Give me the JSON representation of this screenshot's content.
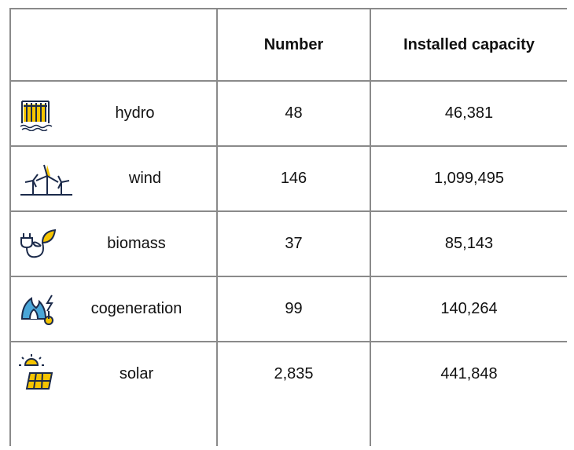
{
  "table": {
    "columns": [
      "Number",
      "Installed capacity"
    ],
    "rows": [
      {
        "label": "hydro",
        "number": "48",
        "capacity": "46,381"
      },
      {
        "label": "wind",
        "number": "146",
        "capacity": "1,099,495"
      },
      {
        "label": "biomass",
        "number": "37",
        "capacity": "85,143"
      },
      {
        "label": "cogeneration",
        "number": "99",
        "capacity": "140,264"
      },
      {
        "label": "solar",
        "number": "2,835",
        "capacity": "441,848"
      }
    ]
  }
}
